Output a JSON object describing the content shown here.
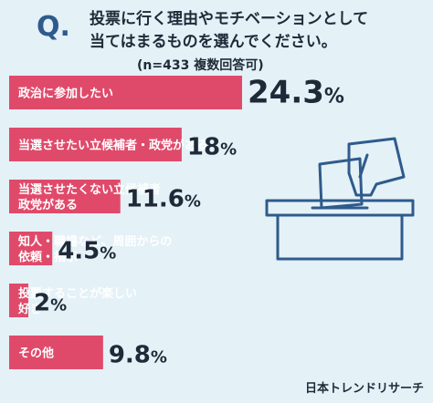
{
  "header": {
    "q_mark": "Q.",
    "title_line1": "投票に行く理由やモチベーションとして",
    "title_line2": "当てはまるものを選んでください。",
    "subtitle": "(n=433 複数回答可)"
  },
  "source": "日本トレンドリサーチ",
  "icon": "ballot-box-icon",
  "colors": {
    "bar": "#e04a6a",
    "background": "#e4f1f7",
    "icon_stroke": "#2f5b8c"
  },
  "chart_data": {
    "type": "bar",
    "orientation": "horizontal",
    "unit": "%",
    "categories": [
      [
        "政治に参加したい"
      ],
      [
        "当選させたい立候補者・政党がある"
      ],
      [
        "当選させたくない立候補者",
        "政党がある"
      ],
      [
        "知人・職場など、周囲からの",
        "依頼・指示"
      ],
      [
        "投票することが楽しい",
        "好き"
      ],
      [
        "その他"
      ]
    ],
    "values": [
      24.3,
      18,
      11.6,
      4.5,
      2,
      9.8
    ],
    "value_labels": [
      "24.3",
      "18",
      "11.6",
      "4.5",
      "2",
      "9.8"
    ],
    "xlim": [
      0,
      24.3
    ]
  }
}
